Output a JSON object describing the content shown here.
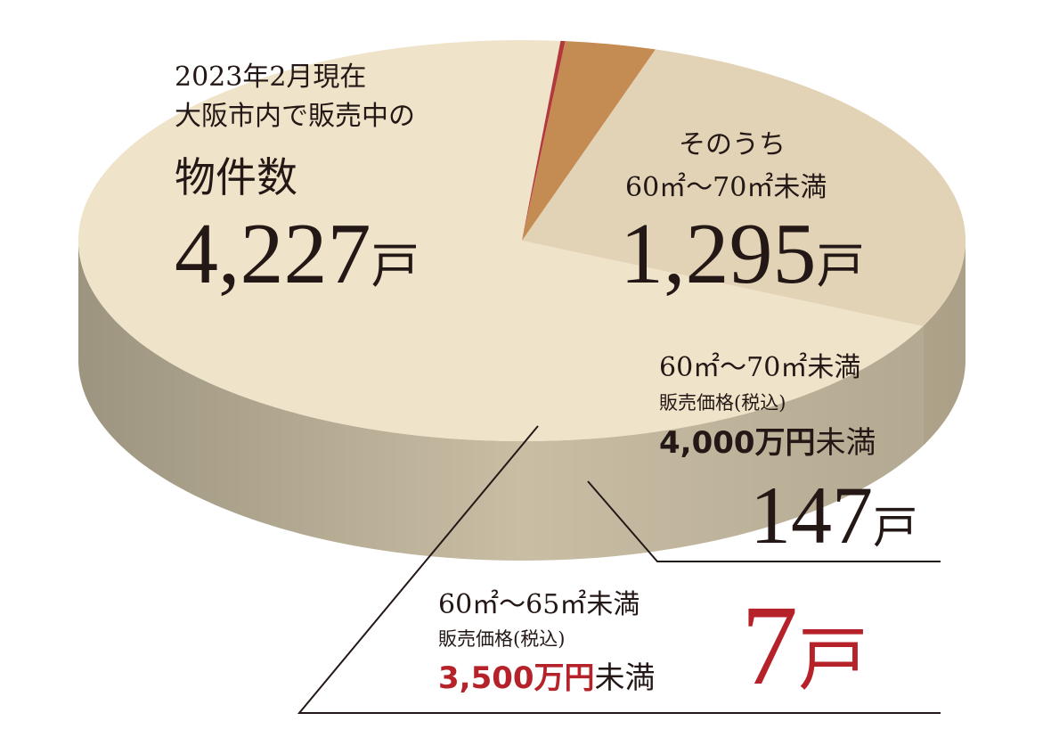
{
  "chart_data": {
    "type": "pie",
    "style": "3d",
    "slices": [
      {
        "key": "total_rest",
        "value": 2932,
        "color": "#efe3c9"
      },
      {
        "key": "size_60_70",
        "value": 1148,
        "color": "#e3d3b6"
      },
      {
        "key": "under_40m",
        "value": 140,
        "color": "#c48b52"
      },
      {
        "key": "under_35m",
        "value": 7,
        "color": "#b3383c"
      }
    ],
    "side_colors": [
      "#c9bea4",
      "#c3b69a",
      "#9e6a35",
      "#7f1619"
    ],
    "total": {
      "line1": "2023年2月現在",
      "line2": "大阪市内で販売中の",
      "line3": "物件数",
      "value": "4,227",
      "unit": "戸"
    },
    "subset_area": {
      "line1": "そのうち",
      "line2": "60㎡〜70㎡未満",
      "value": "1,295",
      "unit": "戸"
    },
    "subset_price40": {
      "line1": "60㎡〜70㎡未満",
      "line2": "販売価格(税込)",
      "line3_num": "4,000万円",
      "line3_suffix": "未満",
      "value": "147",
      "unit": "戸"
    },
    "subset_price35": {
      "line1": "60㎡〜65㎡未満",
      "line2": "販売価格(税込)",
      "line3_num": "3,500万円",
      "line3_suffix": "未満",
      "value": "7",
      "unit": "戸"
    }
  }
}
